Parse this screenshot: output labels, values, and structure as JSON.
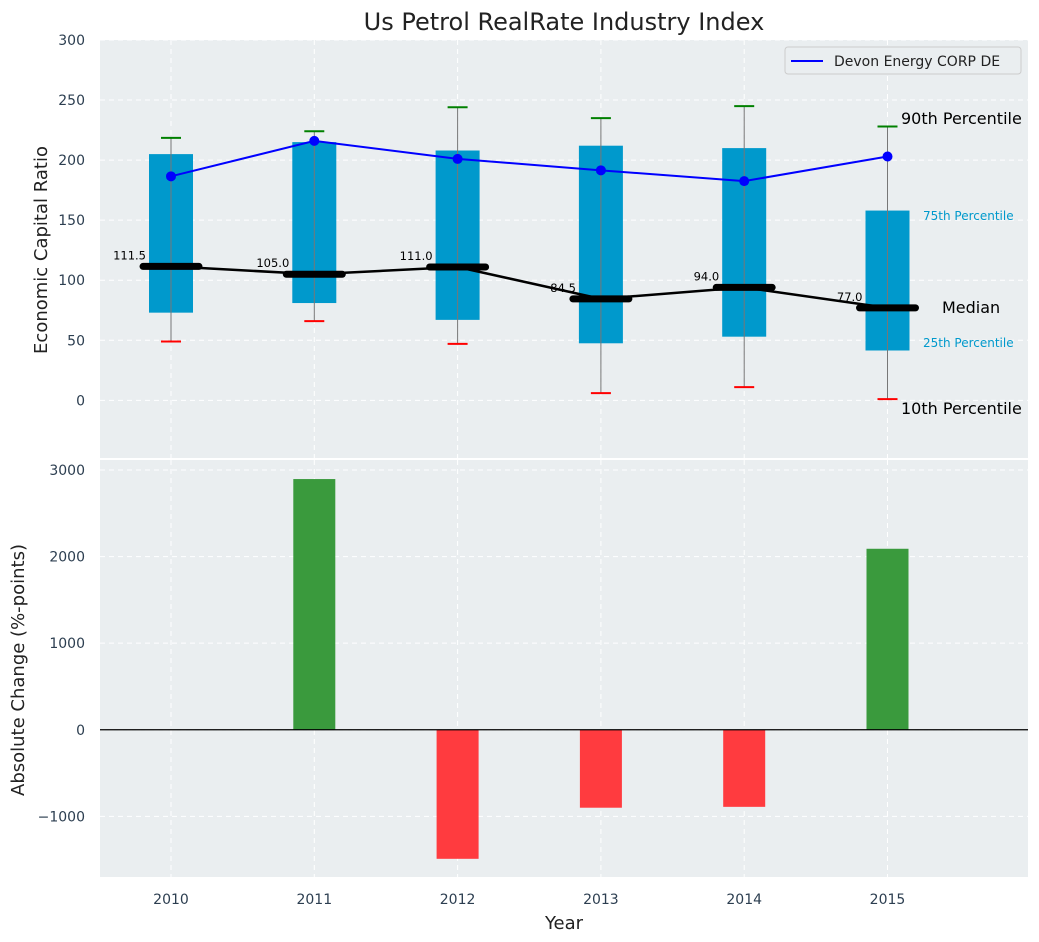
{
  "chart_data": [
    {
      "type": "box-percentile",
      "title": "Us Petrol RealRate Industry Index",
      "xlabel": "",
      "ylabel": "Economic Capital Ratio",
      "ylim": [
        -48,
        300
      ],
      "yticks": [
        0,
        50,
        100,
        150,
        200,
        250,
        300
      ],
      "grid": true,
      "categories": [
        "2010",
        "2011",
        "2012",
        "2013",
        "2014",
        "2015"
      ],
      "p10": [
        49,
        66,
        47,
        6,
        11,
        1
      ],
      "p25": [
        73,
        81,
        67,
        47.5,
        53,
        41.5
      ],
      "median": [
        111.5,
        105.0,
        111.0,
        84.5,
        94.0,
        77.0
      ],
      "median_labels": [
        "111.5",
        "105.0",
        "111.0",
        "84.5",
        "94.0",
        "77.0"
      ],
      "p75": [
        205,
        215,
        208,
        212,
        210,
        158
      ],
      "p90": [
        218.5,
        224,
        244,
        235,
        245,
        228
      ],
      "series": [
        {
          "name": "Devon Energy CORP DE",
          "values": [
            186.5,
            216,
            201,
            191.5,
            182.5,
            203
          ],
          "color": "#0000ff"
        }
      ],
      "legend": {
        "placement": "top-right",
        "entries": [
          "Devon Energy CORP DE"
        ]
      },
      "annotations": {
        "p90": "90th Percentile",
        "p75": "75th Percentile",
        "median": "Median",
        "p25": "25th Percentile",
        "p10": "10th Percentile"
      },
      "colors": {
        "box": "#0099cc",
        "p90": "#008000",
        "p10": "#ff0000",
        "median": "#000000",
        "background": "#eaeef0"
      }
    },
    {
      "type": "bar",
      "xlabel": "Year",
      "ylabel": "Absolute Change (%-points)",
      "ylim": [
        -1700,
        3115
      ],
      "yticks": [
        -1000,
        0,
        1000,
        2000,
        3000
      ],
      "ytick_labels": [
        "−1000",
        "0",
        "1000",
        "2000",
        "3000"
      ],
      "grid": true,
      "categories": [
        "2010",
        "2011",
        "2012",
        "2013",
        "2014",
        "2015"
      ],
      "values": [
        0,
        2895,
        -1490,
        -900,
        -890,
        2090
      ],
      "colors": {
        "positive": "#3a9a3d",
        "negative": "#ff3b3f",
        "background": "#eaeef0"
      }
    }
  ]
}
